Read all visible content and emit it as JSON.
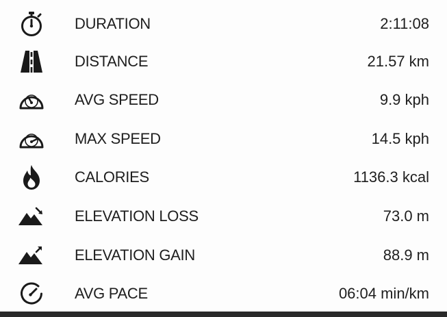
{
  "stats": [
    {
      "label": "DURATION",
      "value": "2:11:08",
      "icon": "stopwatch-icon"
    },
    {
      "label": "DISTANCE",
      "value": "21.57 km",
      "icon": "road-icon"
    },
    {
      "label": "AVG SPEED",
      "value": "9.9 kph",
      "icon": "speedometer-icon"
    },
    {
      "label": "MAX SPEED",
      "value": "14.5 kph",
      "icon": "speedometer-max-icon"
    },
    {
      "label": "CALORIES",
      "value": "1136.3 kcal",
      "icon": "flame-icon"
    },
    {
      "label": "ELEVATION LOSS",
      "value": "73.0 m",
      "icon": "mountain-down-icon"
    },
    {
      "label": "ELEVATION GAIN",
      "value": "88.9 m",
      "icon": "mountain-up-icon"
    },
    {
      "label": "AVG PACE",
      "value": "06:04 min/km",
      "icon": "pace-gauge-icon"
    }
  ],
  "colors": {
    "text": "#1e1e1e",
    "icon": "#1a1a1a",
    "background": "#fdfdfd",
    "bottom_bar": "#2a2a2a"
  }
}
